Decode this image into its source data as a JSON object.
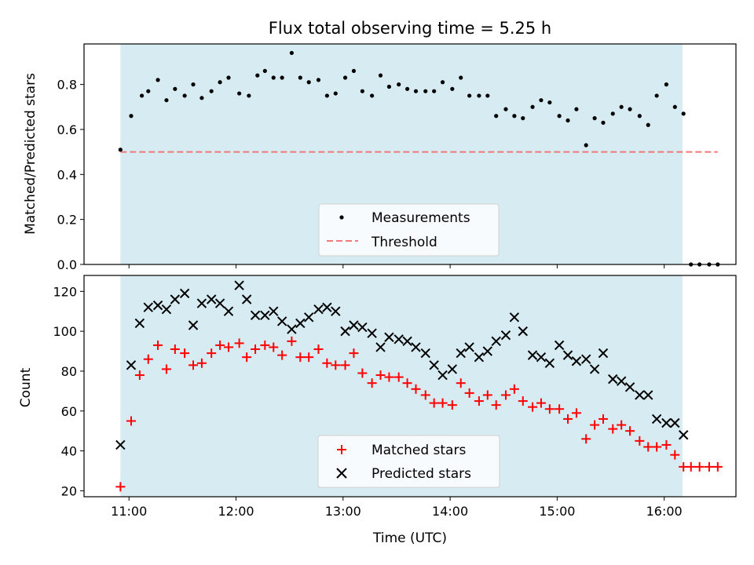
{
  "chart_data": [
    {
      "type": "scatter",
      "title": "Flux total observing time = 5.25 h",
      "xlabel": "",
      "ylabel": "Matched/Predicted stars",
      "ylim": [
        0,
        0.98
      ],
      "yticks": [
        "0.0",
        "0.2",
        "0.4",
        "0.6",
        "0.8"
      ],
      "ytick_values": [
        0,
        0.2,
        0.4,
        0.6,
        0.8
      ],
      "shaded_span_hours": [
        10.92,
        16.17
      ],
      "legend": {
        "position": "lower-center",
        "entries": [
          "Measurements",
          "Threshold"
        ]
      },
      "threshold": {
        "name": "Threshold",
        "value": 0.5,
        "x_range_hours": [
          10.92,
          16.5
        ],
        "color": "#f07878"
      },
      "series": [
        {
          "name": "Measurements",
          "color": "#000000",
          "marker": "dot",
          "x_hours": [
            10.92,
            11.02,
            11.12,
            11.18,
            11.27,
            11.35,
            11.43,
            11.52,
            11.6,
            11.68,
            11.77,
            11.85,
            11.93,
            12.03,
            12.12,
            12.2,
            12.27,
            12.35,
            12.43,
            12.52,
            12.6,
            12.68,
            12.77,
            12.85,
            12.93,
            13.02,
            13.1,
            13.18,
            13.27,
            13.35,
            13.43,
            13.52,
            13.6,
            13.68,
            13.77,
            13.85,
            13.93,
            14.02,
            14.1,
            14.18,
            14.27,
            14.35,
            14.43,
            14.52,
            14.6,
            14.68,
            14.77,
            14.85,
            14.93,
            15.02,
            15.1,
            15.18,
            15.27,
            15.35,
            15.43,
            15.52,
            15.6,
            15.68,
            15.77,
            15.85,
            15.93,
            16.02,
            16.1,
            16.18,
            16.25,
            16.33,
            16.42,
            16.5
          ],
          "y": [
            0.51,
            0.66,
            0.75,
            0.77,
            0.82,
            0.73,
            0.78,
            0.75,
            0.8,
            0.74,
            0.77,
            0.81,
            0.83,
            0.76,
            0.75,
            0.84,
            0.86,
            0.83,
            0.83,
            0.94,
            0.83,
            0.81,
            0.82,
            0.75,
            0.76,
            0.83,
            0.86,
            0.77,
            0.75,
            0.84,
            0.79,
            0.8,
            0.78,
            0.77,
            0.77,
            0.77,
            0.81,
            0.78,
            0.83,
            0.75,
            0.75,
            0.75,
            0.66,
            0.69,
            0.66,
            0.65,
            0.7,
            0.73,
            0.72,
            0.66,
            0.64,
            0.69,
            0.53,
            0.65,
            0.63,
            0.67,
            0.7,
            0.69,
            0.66,
            0.62,
            0.75,
            0.8,
            0.7,
            0.67,
            0,
            0,
            0,
            0
          ]
        }
      ]
    },
    {
      "type": "scatter",
      "title": "",
      "xlabel": "Time (UTC)",
      "ylabel": "Count",
      "xlim_hours": [
        10.58,
        16.67
      ],
      "ylim": [
        17,
        128
      ],
      "xticks": [
        "11:00",
        "12:00",
        "13:00",
        "14:00",
        "15:00",
        "16:00"
      ],
      "xtick_values_hours": [
        11,
        12,
        13,
        14,
        15,
        16
      ],
      "yticks": [
        "20",
        "40",
        "60",
        "80",
        "100",
        "120"
      ],
      "ytick_values": [
        20,
        40,
        60,
        80,
        100,
        120
      ],
      "shaded_span_hours": [
        10.92,
        16.17
      ],
      "legend": {
        "position": "lower-center",
        "entries": [
          "Matched stars",
          "Predicted stars"
        ]
      },
      "series": [
        {
          "name": "Matched stars",
          "color": "#ff0000",
          "marker": "plus",
          "x_hours": [
            10.92,
            11.02,
            11.1,
            11.18,
            11.27,
            11.35,
            11.43,
            11.52,
            11.6,
            11.68,
            11.77,
            11.85,
            11.93,
            12.03,
            12.1,
            12.18,
            12.27,
            12.35,
            12.43,
            12.52,
            12.6,
            12.68,
            12.77,
            12.85,
            12.93,
            13.02,
            13.1,
            13.18,
            13.27,
            13.35,
            13.43,
            13.52,
            13.6,
            13.68,
            13.77,
            13.85,
            13.93,
            14.02,
            14.1,
            14.18,
            14.27,
            14.35,
            14.43,
            14.52,
            14.6,
            14.68,
            14.77,
            14.85,
            14.93,
            15.02,
            15.1,
            15.18,
            15.27,
            15.35,
            15.43,
            15.52,
            15.6,
            15.68,
            15.77,
            15.85,
            15.93,
            16.02,
            16.1,
            16.18,
            16.25,
            16.33,
            16.42,
            16.5
          ],
          "y": [
            22,
            55,
            78,
            86,
            93,
            81,
            91,
            89,
            83,
            84,
            89,
            93,
            92,
            94,
            87,
            91,
            93,
            92,
            88,
            95,
            87,
            87,
            91,
            84,
            83,
            83,
            89,
            79,
            74,
            78,
            77,
            77,
            74,
            71,
            68,
            64,
            64,
            63,
            74,
            69,
            65,
            68,
            63,
            68,
            71,
            65,
            62,
            64,
            61,
            61,
            56,
            59,
            46,
            53,
            56,
            51,
            53,
            50,
            45,
            42,
            42,
            43,
            38,
            32,
            32,
            32,
            32,
            32
          ]
        },
        {
          "name": "Predicted stars",
          "color": "#000000",
          "marker": "x",
          "x_hours": [
            10.92,
            11.02,
            11.1,
            11.18,
            11.27,
            11.35,
            11.43,
            11.52,
            11.6,
            11.68,
            11.77,
            11.85,
            11.93,
            12.03,
            12.1,
            12.18,
            12.27,
            12.35,
            12.43,
            12.52,
            12.6,
            12.68,
            12.77,
            12.85,
            12.93,
            13.02,
            13.1,
            13.18,
            13.27,
            13.35,
            13.43,
            13.52,
            13.6,
            13.68,
            13.77,
            13.85,
            13.93,
            14.02,
            14.1,
            14.18,
            14.27,
            14.35,
            14.43,
            14.52,
            14.6,
            14.68,
            14.77,
            14.85,
            14.93,
            15.02,
            15.1,
            15.18,
            15.27,
            15.35,
            15.43,
            15.52,
            15.6,
            15.68,
            15.77,
            15.85,
            15.93,
            16.02,
            16.1,
            16.18
          ],
          "y": [
            43,
            83,
            104,
            112,
            113,
            111,
            116,
            119,
            103,
            114,
            116,
            114,
            110,
            123,
            116,
            108,
            108,
            110,
            105,
            101,
            104,
            107,
            111,
            112,
            110,
            100,
            103,
            102,
            99,
            92,
            97,
            96,
            95,
            92,
            89,
            83,
            78,
            81,
            89,
            92,
            87,
            90,
            95,
            98,
            107,
            100,
            88,
            87,
            84,
            93,
            88,
            85,
            86,
            81,
            89,
            76,
            75,
            72,
            68,
            68,
            56,
            54,
            54,
            48
          ]
        }
      ]
    }
  ]
}
